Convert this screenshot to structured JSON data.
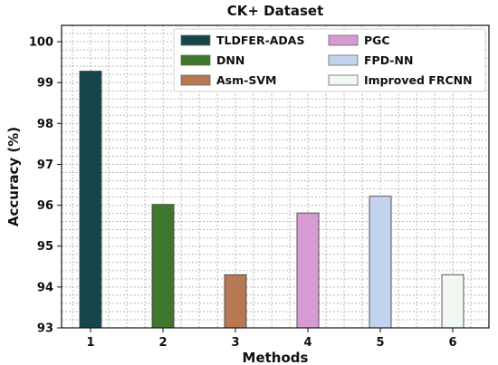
{
  "chart_data": {
    "type": "bar",
    "title": "CK+ Dataset",
    "xlabel": "Methods",
    "ylabel": "Accuracy (%)",
    "categories": [
      "1",
      "2",
      "3",
      "4",
      "5",
      "6"
    ],
    "series": [
      {
        "name": "TLDFER-ADAS",
        "color": "#17464a",
        "values": [
          99.28,
          null,
          null,
          null,
          null,
          null
        ]
      },
      {
        "name": "DNN",
        "color": "#3f772f",
        "values": [
          null,
          96.02,
          null,
          null,
          null,
          null
        ]
      },
      {
        "name": "Asm-SVM",
        "color": "#b77854",
        "values": [
          null,
          null,
          94.3,
          null,
          null,
          null
        ]
      },
      {
        "name": "PGC",
        "color": "#d89ad2",
        "values": [
          null,
          null,
          null,
          95.81,
          null,
          null
        ]
      },
      {
        "name": "FPD-NN",
        "color": "#c3d3ef",
        "values": [
          null,
          null,
          null,
          null,
          96.22,
          null
        ]
      },
      {
        "name": "Improved FRCNN",
        "color": "#f1f8f1",
        "values": [
          null,
          null,
          null,
          null,
          null,
          94.3
        ]
      }
    ],
    "ylim": [
      93,
      100.4
    ],
    "yticks": [
      93,
      94,
      95,
      96,
      97,
      98,
      99,
      100
    ],
    "grid": true,
    "legend_position": "top-right"
  }
}
